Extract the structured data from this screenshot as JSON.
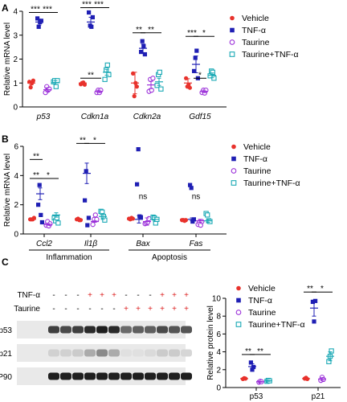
{
  "colors": {
    "vehicle": "#e8322c",
    "tnf": "#1f1fb4",
    "taurine": "#9b30d9",
    "taurine_tnf": "#1aa9b5"
  },
  "chart_data": [
    {
      "panel": "A",
      "type": "scatter",
      "ylabel": "Relative mRNA level",
      "ylim": [
        0,
        4
      ],
      "yticks": [
        "0",
        "1",
        "2",
        "3",
        "4"
      ],
      "categories": [
        "p53",
        "Cdkn1a",
        "Cdkn2a",
        "Gdf15"
      ],
      "series": [
        {
          "name": "Vehicle",
          "color": "#e8322c",
          "marker": "circle",
          "mean": [
            1.0,
            1.0,
            1.0,
            1.0
          ],
          "sem": [
            0.08,
            0.05,
            0.45,
            0.18
          ],
          "points": [
            [
              1.05,
              0.82,
              1.0,
              1.1
            ],
            [
              0.95,
              1.0,
              1.02,
              0.93
            ],
            [
              1.4,
              0.45,
              1.0,
              0.85
            ],
            [
              1.2,
              0.85,
              0.93,
              0.8
            ]
          ]
        },
        {
          "name": "TNF-α",
          "color": "#1f1fb4",
          "marker": "square",
          "mean": [
            3.55,
            3.55,
            2.45,
            1.78
          ],
          "sem": [
            0.12,
            0.2,
            0.18,
            0.35
          ],
          "points": [
            [
              3.7,
              3.35,
              3.55,
              3.6
            ],
            [
              3.95,
              3.4,
              3.35,
              3.75
            ],
            [
              2.3,
              2.75,
              2.55,
              2.2
            ],
            [
              1.5,
              2.05,
              2.35,
              1.2
            ]
          ]
        },
        {
          "name": "Taurine",
          "color": "#9b30d9",
          "marker": "circle-open",
          "mean": [
            0.72,
            0.65,
            0.92,
            0.65
          ],
          "sem": [
            0.08,
            0.05,
            0.15,
            0.05
          ],
          "points": [
            [
              0.6,
              0.85,
              0.7,
              0.75
            ],
            [
              0.6,
              0.7,
              0.6,
              0.7
            ],
            [
              0.65,
              1.15,
              0.7,
              1.2
            ],
            [
              0.6,
              0.7,
              0.58,
              0.7
            ]
          ]
        },
        {
          "name": "Taurine+TNF-α",
          "color": "#1aa9b5",
          "marker": "square-open",
          "mean": [
            1.02,
            1.45,
            1.05,
            1.32
          ],
          "sem": [
            0.08,
            0.12,
            0.15,
            0.1
          ],
          "points": [
            [
              1.05,
              1.1,
              0.85,
              1.1
            ],
            [
              1.15,
              1.55,
              1.75,
              1.35
            ],
            [
              0.9,
              1.35,
              1.45,
              0.75
            ],
            [
              1.3,
              1.5,
              1.45,
              1.2
            ]
          ]
        }
      ],
      "significance": [
        {
          "cat": 0,
          "a": 0,
          "b": 1,
          "label": "***",
          "y": 3.95
        },
        {
          "cat": 0,
          "a": 1,
          "b": 3,
          "label": "***",
          "y": 3.95
        },
        {
          "cat": 1,
          "a": 0,
          "b": 1,
          "label": "***",
          "y": 4.15
        },
        {
          "cat": 1,
          "a": 1,
          "b": 3,
          "label": "***",
          "y": 4.15
        },
        {
          "cat": 1,
          "a": 0,
          "b": 2,
          "label": "**",
          "y": 1.2
        },
        {
          "cat": 2,
          "a": 0,
          "b": 1,
          "label": "**",
          "y": 3.1
        },
        {
          "cat": 2,
          "a": 1,
          "b": 3,
          "label": "**",
          "y": 3.1
        },
        {
          "cat": 3,
          "a": 0,
          "b": 1,
          "label": "***",
          "y": 2.95
        },
        {
          "cat": 3,
          "a": 1,
          "b": 3,
          "label": "*",
          "y": 2.95
        },
        {
          "cat": 3,
          "a": 1,
          "b": 2,
          "label": "*",
          "y": 1.2
        }
      ]
    },
    {
      "panel": "B",
      "type": "scatter",
      "ylabel": "Relative mRNA level",
      "ylim": [
        0,
        6
      ],
      "yticks": [
        "0",
        "2",
        "4",
        "6"
      ],
      "categories": [
        "Ccl2",
        "Il1β",
        "Bax",
        "Fas"
      ],
      "groups": [
        "Inflammation",
        "Apoptosis"
      ],
      "series": [
        {
          "name": "Vehicle",
          "color": "#e8322c",
          "marker": "circle",
          "mean": [
            1.0,
            1.0,
            1.0,
            1.0
          ],
          "sem": [
            0.05,
            0.05,
            0.05,
            0.05
          ],
          "points": [
            [
              1.0,
              1.0,
              1.0,
              1.1
            ],
            [
              1.0,
              1.05,
              0.95,
              0.95
            ],
            [
              1.05,
              1.0,
              1.1,
              1.05
            ],
            [
              0.95,
              0.95,
              0.9,
              0.95
            ]
          ]
        },
        {
          "name": "TNF-α",
          "color": "#1f1fb4",
          "marker": "square",
          "mean": [
            2.75,
            4.15,
            1.0,
            1.0
          ],
          "sem": [
            0.4,
            0.7,
            0.25,
            0.1
          ],
          "points": [
            [
              2.0,
              3.35,
              1.3,
              0.8
            ],
            [
              2.3,
              4.3,
              0.6,
              1.1
            ],
            [
              3.4,
              5.8,
              1.2,
              1.15
            ],
            [
              3.35,
              3.15,
              0.85,
              1.0
            ]
          ]
        },
        {
          "name": "Taurine",
          "color": "#9b30d9",
          "marker": "circle-open",
          "mean": [
            0.65,
            0.85,
            0.85,
            0.9
          ],
          "sem": [
            0.05,
            0.05,
            0.25,
            0.1
          ],
          "points": [
            [
              0.6,
              0.85,
              0.55,
              0.7
            ],
            [
              0.65,
              1.0,
              1.3,
              1.0
            ],
            [
              0.7,
              0.75,
              0.8,
              1.05
            ],
            [
              0.65,
              0.8,
              0.6,
              0.85
            ]
          ]
        },
        {
          "name": "Taurine+TNF-α",
          "color": "#1aa9b5",
          "marker": "square-open",
          "mean": [
            1.3,
            1.2,
            1.0,
            0.9
          ],
          "sem": [
            0.15,
            0.2,
            0.15,
            0.1
          ],
          "points": [
            [
              1.1,
              0.9,
              1.1,
              0.75
            ],
            [
              1.55,
              1.5,
              1.2,
              0.95
            ],
            [
              1.15,
              1.1,
              0.75,
              1.0
            ],
            [
              1.4,
              1.3,
              0.9,
              0.85
            ]
          ]
        }
      ],
      "significance": [
        {
          "cat": 0,
          "a": 0,
          "b": 1,
          "label": "**",
          "y": 3.8
        },
        {
          "cat": 0,
          "a": 0,
          "b": 1,
          "label": "**",
          "y": 5.1
        },
        {
          "cat": 0,
          "a": 1,
          "b": 3,
          "label": "*",
          "y": 3.8
        },
        {
          "cat": 1,
          "a": 0,
          "b": 1,
          "label": "**",
          "y": 6.2
        },
        {
          "cat": 1,
          "a": 1,
          "b": 3,
          "label": "*",
          "y": 6.2
        }
      ],
      "ns": [
        {
          "cat": 2,
          "label": "ns"
        },
        {
          "cat": 3,
          "label": "ns"
        }
      ]
    },
    {
      "panel": "C",
      "type": "scatter",
      "ylabel": "Relative protein level",
      "ylim": [
        0,
        10
      ],
      "yticks": [
        "0",
        "2",
        "4",
        "6",
        "8",
        "10"
      ],
      "categories": [
        "p53",
        "p21"
      ],
      "series": [
        {
          "name": "Vehicle",
          "color": "#e8322c",
          "marker": "circle",
          "mean": [
            1.0,
            1.0
          ],
          "sem": [
            0.05,
            0.05
          ],
          "points": [
            [
              0.95,
              1.05,
              1.0
            ],
            [
              1.0,
              1.1,
              0.95
            ]
          ]
        },
        {
          "name": "TNF-α",
          "color": "#1f1fb4",
          "marker": "square",
          "mean": [
            2.35,
            8.9
          ],
          "sem": [
            0.3,
            0.9
          ],
          "points": [
            [
              2.8,
              2.0,
              2.3
            ],
            [
              9.6,
              7.4,
              9.7
            ]
          ]
        },
        {
          "name": "Taurine",
          "color": "#9b30d9",
          "marker": "circle-open",
          "mean": [
            0.65,
            0.95
          ],
          "sem": [
            0.05,
            0.15
          ],
          "points": [
            [
              0.6,
              0.7,
              0.65
            ],
            [
              0.8,
              1.15,
              0.9
            ]
          ]
        },
        {
          "name": "Taurine+TNF-α",
          "color": "#1aa9b5",
          "marker": "square-open",
          "mean": [
            0.75,
            3.5
          ],
          "sem": [
            0.05,
            0.5
          ],
          "points": [
            [
              0.7,
              0.8,
              0.75
            ],
            [
              2.9,
              3.5,
              4.1
            ]
          ]
        }
      ],
      "significance": [
        {
          "cat": 0,
          "a": 0,
          "b": 1,
          "label": "**",
          "y": 3.7
        },
        {
          "cat": 0,
          "a": 1,
          "b": 3,
          "label": "**",
          "y": 3.7
        },
        {
          "cat": 1,
          "a": 0,
          "b": 1,
          "label": "**",
          "y": 10.7
        },
        {
          "cat": 1,
          "a": 1,
          "b": 3,
          "label": "*",
          "y": 10.7
        }
      ]
    }
  ],
  "blot": {
    "treatment_rows": [
      {
        "label": "TNF-α",
        "marks": [
          "-",
          "-",
          "-",
          "+",
          "+",
          "+",
          "-",
          "-",
          "-",
          "+",
          "+",
          "+"
        ]
      },
      {
        "label": "Taurine",
        "marks": [
          "-",
          "-",
          "-",
          "-",
          "-",
          "-",
          "+",
          "+",
          "+",
          "+",
          "+",
          "+"
        ]
      }
    ],
    "proteins": [
      {
        "label": "p53",
        "intensity": [
          0.8,
          0.75,
          0.8,
          0.9,
          0.95,
          0.9,
          0.6,
          0.65,
          0.65,
          0.75,
          0.7,
          0.7
        ]
      },
      {
        "label": "p21",
        "intensity": [
          0.12,
          0.12,
          0.15,
          0.3,
          0.45,
          0.3,
          0.05,
          0.05,
          0.08,
          0.15,
          0.15,
          0.1
        ]
      },
      {
        "label": "HSP90",
        "intensity": [
          0.95,
          0.95,
          0.95,
          0.95,
          0.95,
          0.95,
          0.95,
          0.95,
          0.95,
          0.95,
          0.95,
          0.95
        ]
      }
    ]
  },
  "panel_labels": [
    "A",
    "B",
    "C"
  ]
}
